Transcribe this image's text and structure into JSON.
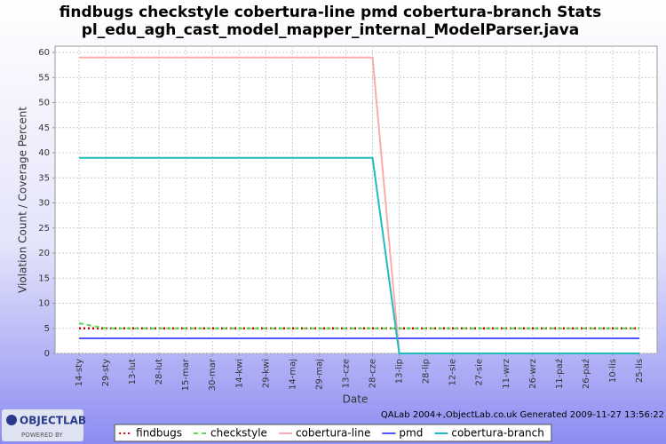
{
  "chart_data": {
    "type": "line",
    "title": "findbugs checkstyle cobertura-line pmd cobertura-branch  Stats",
    "subtitle": "pl_edu_agh_cast_model_mapper_internal_ModelParser.java",
    "x_label": "Date",
    "y_label": "Violation Count / Coverage Percent",
    "categories": [
      "14-sty",
      "29-sty",
      "13-lut",
      "28-lut",
      "15-mar",
      "30-mar",
      "14-kwi",
      "29-kwi",
      "14-maj",
      "29-maj",
      "13-cze",
      "28-cze",
      "13-lip",
      "28-lip",
      "12-sie",
      "27-sie",
      "11-wrz",
      "26-wrz",
      "11-paź",
      "26-paź",
      "10-lis",
      "25-lis"
    ],
    "series": [
      {
        "name": "findbugs",
        "color": "#cc0000",
        "values": [
          5,
          5,
          5,
          5,
          5,
          5,
          5,
          5,
          5,
          5,
          5,
          5,
          5,
          5,
          5,
          5,
          5,
          5,
          5,
          5,
          5,
          5
        ]
      },
      {
        "name": "checkstyle",
        "color": "#55dd55",
        "values": [
          6,
          5,
          5,
          5,
          5,
          5,
          5,
          5,
          5,
          5,
          5,
          5,
          5,
          5,
          5,
          5,
          5,
          5,
          5,
          5,
          5,
          5
        ]
      },
      {
        "name": "cobertura-line",
        "color": "#ffaaaa",
        "values": [
          59,
          59,
          59,
          59,
          59,
          59,
          59,
          59,
          59,
          59,
          59,
          59,
          0,
          0,
          0,
          0,
          0,
          0,
          0,
          0,
          0,
          0
        ]
      },
      {
        "name": "pmd",
        "color": "#5555ff",
        "values": [
          3,
          3,
          3,
          3,
          3,
          3,
          3,
          3,
          3,
          3,
          3,
          3,
          3,
          3,
          3,
          3,
          3,
          3,
          3,
          3,
          3,
          3
        ]
      },
      {
        "name": "cobertura-branch",
        "color": "#22bbbb",
        "values": [
          39,
          39,
          39,
          39,
          39,
          39,
          39,
          39,
          39,
          39,
          39,
          39,
          0,
          0,
          0,
          0,
          0,
          0,
          0,
          0,
          0,
          0
        ]
      }
    ],
    "ylim": [
      0,
      61.25
    ],
    "yticks": [
      0,
      5,
      10,
      15,
      20,
      25,
      30,
      35,
      40,
      45,
      50,
      55,
      60
    ],
    "grid": true,
    "legend": "bottom",
    "footer": "QALab 2004+,ObjectLab.co.uk Generated 2009-11-27 13:56:22",
    "logo": {
      "text": "OBJECTLAB",
      "subtext": "POWERED BY"
    }
  }
}
